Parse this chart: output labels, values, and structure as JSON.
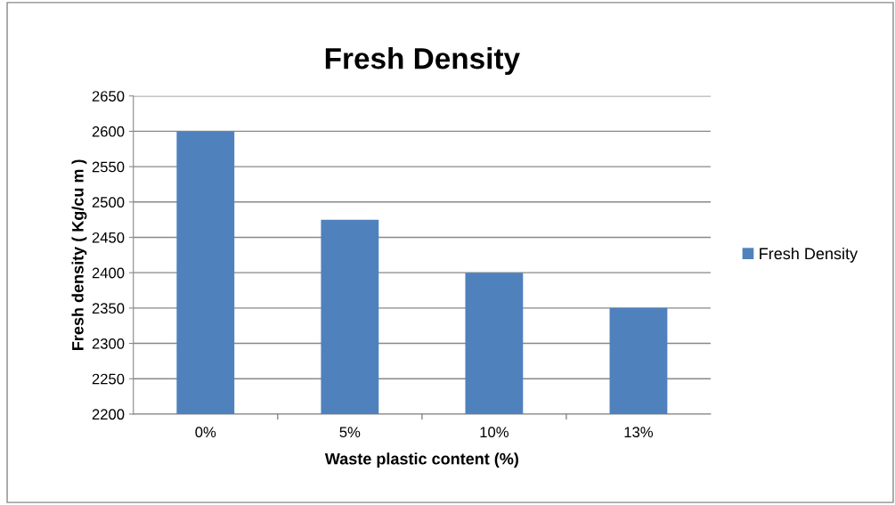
{
  "chart_data": {
    "type": "bar",
    "title": "Fresh Density",
    "xlabel": "Waste plastic content (%)",
    "ylabel": "Fresh density ( Kg/cu m )",
    "categories": [
      "0%",
      "5%",
      "10%",
      "13%"
    ],
    "series": [
      {
        "name": "Fresh Density",
        "color": "#4f81bd",
        "values": [
          2600,
          2475,
          2400,
          2350
        ]
      }
    ],
    "ylim": [
      2200,
      2650
    ],
    "yticks": [
      2200,
      2250,
      2300,
      2350,
      2400,
      2450,
      2500,
      2550,
      2600,
      2650
    ],
    "grid": "y",
    "legend": "right"
  }
}
